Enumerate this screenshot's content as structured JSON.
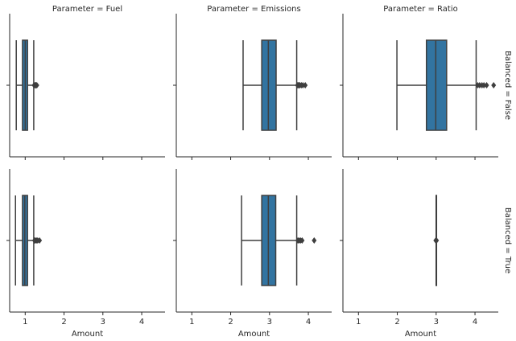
{
  "chart_data": {
    "type": "box",
    "style": {
      "box_color": "#3274a1",
      "line_color": "#3f3f3f"
    },
    "col_titles": [
      "Parameter = Fuel",
      "Parameter = Emissions",
      "Parameter = Ratio"
    ],
    "row_titles": [
      "Balanced = False",
      "Balanced = True"
    ],
    "xlabel": "Amount",
    "xlim": [
      0.6,
      4.6
    ],
    "xticks": [
      1,
      2,
      3,
      4
    ],
    "grid": false,
    "panels": [
      {
        "row": 0,
        "col": 0,
        "whislo": 0.77,
        "q1": 0.93,
        "med": 1.0,
        "q3": 1.06,
        "whishi": 1.22,
        "fliers": [
          1.23,
          1.25,
          1.27,
          1.28,
          1.3
        ]
      },
      {
        "row": 0,
        "col": 1,
        "whislo": 2.32,
        "q1": 2.8,
        "med": 2.97,
        "q3": 3.17,
        "whishi": 3.7,
        "fliers": [
          3.72,
          3.74,
          3.76,
          3.78,
          3.82,
          3.86,
          3.92
        ]
      },
      {
        "row": 0,
        "col": 2,
        "whislo": 1.99,
        "q1": 2.75,
        "med": 2.99,
        "q3": 3.27,
        "whishi": 4.03,
        "fliers": [
          4.07,
          4.12,
          4.18,
          4.23,
          4.3,
          4.48
        ]
      },
      {
        "row": 1,
        "col": 0,
        "whislo": 0.75,
        "q1": 0.93,
        "med": 0.99,
        "q3": 1.06,
        "whishi": 1.22,
        "fliers": [
          1.24,
          1.26,
          1.29,
          1.32,
          1.37
        ]
      },
      {
        "row": 1,
        "col": 1,
        "whislo": 2.28,
        "q1": 2.8,
        "med": 2.97,
        "q3": 3.16,
        "whishi": 3.7,
        "fliers": [
          3.73,
          3.76,
          3.8,
          3.84,
          4.15
        ]
      },
      {
        "row": 1,
        "col": 2,
        "whislo": 3.0,
        "q1": 3.0,
        "med": 3.0,
        "q3": 3.0,
        "whishi": 3.0,
        "fliers": [
          2.99,
          3.0,
          3.01
        ]
      }
    ]
  }
}
